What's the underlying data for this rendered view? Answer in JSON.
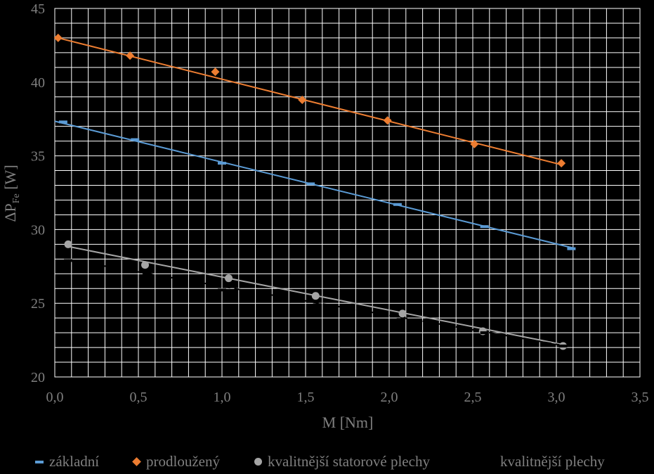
{
  "chart_data": {
    "type": "scatter",
    "xlabel": "M [Nm]",
    "ylabel_main": "ΔP",
    "ylabel_sub": "Fe",
    "ylabel_unit": " [W]",
    "xlim": [
      0,
      3.5
    ],
    "ylim": [
      20,
      45
    ],
    "x_ticks": [
      "0,0",
      "0,5",
      "1,0",
      "1,5",
      "2,0",
      "2,5",
      "3,0",
      "3,5"
    ],
    "x_tick_values": [
      0,
      0.5,
      1.0,
      1.5,
      2.0,
      2.5,
      3.0,
      3.5
    ],
    "y_ticks": [
      "20",
      "25",
      "30",
      "35",
      "40",
      "45"
    ],
    "y_tick_values": [
      20,
      25,
      30,
      35,
      40,
      45
    ],
    "x_minor_step": 0.1,
    "y_minor_step": 1,
    "grid": true,
    "legend_position": "bottom",
    "series": [
      {
        "name": "základní",
        "marker": "dash",
        "color": "#5b9bd5",
        "x": [
          0.05,
          0.48,
          1.0,
          1.53,
          2.05,
          2.57,
          3.09
        ],
        "y": [
          37.3,
          36.1,
          34.5,
          33.1,
          31.7,
          30.2,
          28.7
        ],
        "trend": [
          [
            0.0,
            37.35
          ],
          [
            3.1,
            28.75
          ]
        ]
      },
      {
        "name": "prodloužený",
        "marker": "diamond",
        "color": "#ed7d31",
        "x": [
          0.02,
          0.45,
          0.96,
          1.48,
          1.99,
          2.51,
          3.03
        ],
        "y": [
          43.0,
          41.8,
          40.7,
          38.8,
          37.4,
          35.8,
          34.5
        ],
        "trend": [
          [
            0.02,
            43.0
          ],
          [
            3.03,
            34.4
          ]
        ]
      },
      {
        "name": "kvalitnější statorové plechy",
        "marker": "circle",
        "color": "#a5a5a5",
        "x": [
          0.08,
          0.54,
          1.04,
          1.56,
          2.08,
          2.56,
          3.04
        ],
        "y": [
          29.0,
          27.6,
          26.7,
          25.5,
          24.3,
          23.1,
          22.1
        ],
        "trend": [
          [
            0.08,
            28.85
          ],
          [
            3.06,
            22.15
          ]
        ]
      },
      {
        "name": "kvalitnější plechy",
        "marker": "dash",
        "color": "#000000",
        "x": [
          0.08,
          0.55,
          1.0,
          1.57,
          2.07,
          2.57,
          3.04
        ],
        "y": [
          27.9,
          27.0,
          25.9,
          24.9,
          23.9,
          23.0,
          22.1
        ],
        "trend": [
          [
            0.08,
            27.95
          ],
          [
            3.06,
            22.1
          ]
        ]
      }
    ]
  }
}
